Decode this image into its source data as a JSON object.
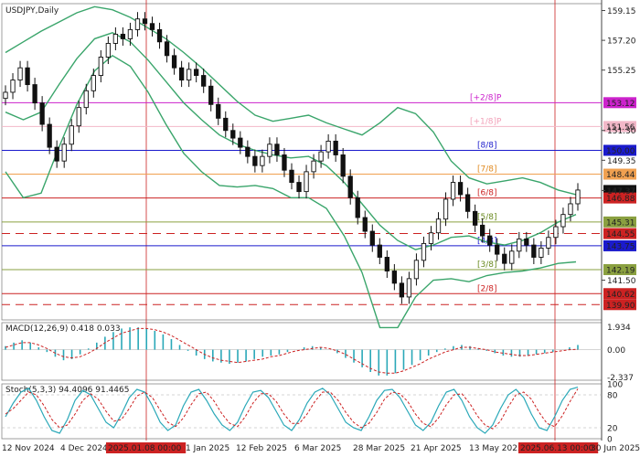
{
  "window": {
    "symbol": "USDJPY,Daily",
    "macd_header": "MACD(12,26,9) 0.418 0.033",
    "stoch_header": "Stoch(5,3,3) 94.4096 91.4465"
  },
  "colors": {
    "candle": "#111111",
    "bollinger": "#3aa56b",
    "macd_hist": "#2aa8b8",
    "macd_signal": "#cc2222",
    "stoch_main": "#2aa8b8",
    "stoch_signal": "#cc2222",
    "vline": "#cc2222"
  },
  "chart_data": [
    {
      "type": "candlestick",
      "title": "USDJPY,Daily",
      "ylim": [
        138.9,
        159.6
      ],
      "price_axis_ticks": [
        159.15,
        157.2,
        155.25,
        151.3,
        149.35,
        147.37,
        141.5
      ],
      "x_dates": [
        "12 Nov 2024",
        "4 Dec 2024",
        "2025.01.08 00:00",
        "1 Jan 2025",
        "12 Feb 2025",
        "6 Mar 2025",
        "28 Mar 2025",
        "21 Apr 2025",
        "13 May 2025",
        "2025.06.13 00:00",
        "30 Jun 2025"
      ],
      "highlighted_dates": [
        "2025.01.08 00:00",
        "2025.06.13 00:00"
      ],
      "close_series": [
        153.8,
        154.6,
        155.4,
        154.3,
        153.1,
        151.7,
        150.2,
        149.3,
        150.4,
        151.6,
        152.8,
        153.9,
        154.9,
        156.1,
        157.0,
        157.6,
        157.3,
        157.9,
        158.6,
        158.3,
        157.9,
        157.1,
        156.2,
        155.4,
        154.6,
        155.3,
        154.9,
        154.2,
        153.0,
        152.1,
        151.3,
        150.8,
        150.2,
        149.6,
        149.0,
        149.6,
        150.4,
        149.7,
        148.7,
        147.9,
        147.3,
        148.6,
        149.3,
        149.9,
        150.6,
        149.7,
        148.3,
        146.9,
        145.6,
        144.7,
        143.8,
        143.0,
        142.1,
        141.3,
        140.4,
        141.6,
        142.8,
        143.9,
        144.6,
        145.5,
        146.8,
        147.9,
        147.1,
        146.0,
        145.1,
        144.4,
        143.8,
        143.2,
        142.6,
        143.4,
        144.2,
        143.8,
        143.0,
        143.6,
        144.3,
        145.0,
        145.8,
        146.5,
        147.4
      ],
      "bollinger_upper": [
        156.4,
        157.1,
        157.8,
        158.4,
        159.0,
        159.4,
        159.2,
        158.7,
        158.0,
        157.3,
        156.4,
        155.4,
        154.3,
        153.2,
        152.3,
        151.9,
        152.1,
        152.3,
        151.8,
        151.4,
        151.0,
        151.8,
        152.8,
        152.4,
        151.2,
        149.3,
        148.2,
        147.8,
        148.0,
        148.2,
        147.9,
        147.4,
        147.1
      ],
      "bollinger_mid": [
        152.5,
        152.0,
        152.5,
        154.3,
        156.0,
        157.3,
        157.7,
        157.1,
        155.9,
        154.5,
        153.1,
        152.0,
        151.0,
        150.4,
        150.0,
        149.7,
        149.5,
        149.6,
        149.0,
        147.9,
        146.5,
        145.1,
        144.1,
        143.5,
        143.8,
        144.3,
        144.4,
        144.0,
        143.8,
        144.1,
        144.6,
        145.3,
        145.8
      ],
      "bollinger_lower": [
        148.6,
        146.9,
        147.2,
        150.2,
        153.0,
        155.2,
        156.2,
        155.5,
        153.8,
        151.7,
        149.8,
        148.6,
        147.7,
        147.6,
        147.7,
        147.5,
        146.9,
        146.9,
        146.2,
        144.4,
        142.0,
        138.4,
        138.4,
        140.4,
        141.5,
        141.6,
        141.4,
        141.8,
        142.0,
        142.1,
        142.3,
        142.6,
        142.7
      ],
      "horizontal_levels": [
        {
          "label": "[+2/8]P",
          "value": "153.12",
          "color": "#cc22cc",
          "style": "solid",
          "label_color": "#cc22cc"
        },
        {
          "label": "[+1/8]P",
          "value": "151.56",
          "color": "#f2b8c8",
          "style": "solid",
          "label_color": "#f2a0b8"
        },
        {
          "label": "[8/8]",
          "value": "150.00",
          "color": "#1a1acc",
          "style": "solid",
          "label_color": "#1a1acc"
        },
        {
          "label": "[7/8]",
          "value": "148.44",
          "color": "#f0a050",
          "style": "solid",
          "label_color": "#e08a20"
        },
        {
          "label": "",
          "value": "147.37",
          "color": "#ffffff",
          "style": "none",
          "label_color": "#111111"
        },
        {
          "label": "[6/8]",
          "value": "146.88",
          "color": "#cc2222",
          "style": "solid",
          "label_color": "#cc2222"
        },
        {
          "label": "[5/8]",
          "value": "145.31",
          "color": "#8aa040",
          "style": "solid",
          "label_color": "#6a8a20"
        },
        {
          "label": "",
          "value": "144.55",
          "color": "#cc2222",
          "style": "dashed",
          "label_color": "#cc2222"
        },
        {
          "label": "[4/8]",
          "value": "143.75",
          "color": "#1a1acc",
          "style": "solid",
          "label_color": "#1a1acc"
        },
        {
          "label": "[3/8]",
          "value": "142.19",
          "color": "#8aa040",
          "style": "solid",
          "label_color": "#6a8a20"
        },
        {
          "label": "[2/8]",
          "value": "140.62",
          "color": "#cc2222",
          "style": "solid",
          "label_color": "#cc2222"
        },
        {
          "label": "",
          "value": "139.90",
          "color": "#cc2222",
          "style": "dashed",
          "label_color": "#cc2222"
        }
      ]
    },
    {
      "type": "bar",
      "title": "MACD(12,26,9) 0.418 0.033",
      "ylim": [
        -2.6,
        2.3
      ],
      "ticks": [
        "1.934",
        "0.00",
        "-2.337"
      ],
      "histogram": [
        0.3,
        0.6,
        0.8,
        0.6,
        0.2,
        -0.2,
        -0.6,
        -0.9,
        -0.8,
        -0.4,
        0.1,
        0.6,
        1.1,
        1.5,
        1.8,
        1.9,
        1.9,
        1.8,
        1.6,
        1.3,
        0.9,
        0.4,
        -0.1,
        -0.5,
        -0.8,
        -1.0,
        -1.1,
        -1.2,
        -1.1,
        -1.0,
        -0.8,
        -0.6,
        -0.5,
        -0.4,
        -0.2,
        0.0,
        0.2,
        0.3,
        0.2,
        0.0,
        -0.3,
        -0.7,
        -1.1,
        -1.5,
        -1.9,
        -2.2,
        -2.2,
        -2.0,
        -1.7,
        -1.3,
        -0.9,
        -0.5,
        -0.2,
        0.1,
        0.3,
        0.4,
        0.3,
        0.1,
        -0.1,
        -0.3,
        -0.5,
        -0.6,
        -0.6,
        -0.5,
        -0.4,
        -0.3,
        -0.2,
        0.0,
        0.2,
        0.4
      ],
      "signal": [
        0.2,
        0.4,
        0.6,
        0.6,
        0.4,
        0.1,
        -0.3,
        -0.6,
        -0.7,
        -0.6,
        -0.3,
        0.1,
        0.6,
        1.0,
        1.4,
        1.6,
        1.8,
        1.8,
        1.7,
        1.5,
        1.2,
        0.8,
        0.4,
        0.0,
        -0.4,
        -0.7,
        -0.9,
        -1.0,
        -1.1,
        -1.0,
        -0.9,
        -0.8,
        -0.6,
        -0.5,
        -0.3,
        -0.1,
        0.0,
        0.1,
        0.2,
        0.1,
        -0.1,
        -0.4,
        -0.8,
        -1.2,
        -1.6,
        -1.9,
        -2.0,
        -2.0,
        -1.8,
        -1.5,
        -1.2,
        -0.8,
        -0.5,
        -0.2,
        0.0,
        0.2,
        0.2,
        0.1,
        0.0,
        -0.2,
        -0.3,
        -0.4,
        -0.5,
        -0.5,
        -0.4,
        -0.3,
        -0.2,
        -0.1,
        0.0,
        0.03
      ]
    },
    {
      "type": "line",
      "title": "Stoch(5,3,3) 94.4096 91.4465",
      "ylim": [
        0,
        100
      ],
      "ticks": [
        "100",
        "80",
        "20",
        "0"
      ],
      "main": [
        40,
        65,
        85,
        92,
        70,
        40,
        15,
        10,
        35,
        70,
        88,
        80,
        55,
        30,
        20,
        45,
        75,
        90,
        85,
        60,
        30,
        15,
        25,
        60,
        85,
        90,
        70,
        45,
        25,
        15,
        30,
        60,
        85,
        88,
        75,
        50,
        25,
        15,
        35,
        65,
        85,
        92,
        80,
        55,
        30,
        20,
        15,
        40,
        70,
        88,
        90,
        75,
        50,
        25,
        15,
        30,
        60,
        85,
        90,
        70,
        40,
        20,
        10,
        25,
        55,
        80,
        90,
        75,
        45,
        20,
        15,
        40,
        70,
        90,
        94
      ],
      "signal": [
        45,
        55,
        70,
        85,
        80,
        60,
        35,
        20,
        25,
        45,
        70,
        82,
        72,
        50,
        32,
        35,
        55,
        78,
        85,
        75,
        52,
        30,
        22,
        38,
        62,
        82,
        85,
        68,
        45,
        28,
        22,
        40,
        65,
        82,
        82,
        68,
        45,
        28,
        28,
        45,
        68,
        85,
        85,
        70,
        48,
        30,
        20,
        28,
        48,
        72,
        85,
        82,
        68,
        45,
        28,
        22,
        38,
        62,
        80,
        82,
        65,
        42,
        25,
        18,
        32,
        58,
        80,
        85,
        72,
        48,
        28,
        22,
        42,
        68,
        91
      ]
    }
  ]
}
